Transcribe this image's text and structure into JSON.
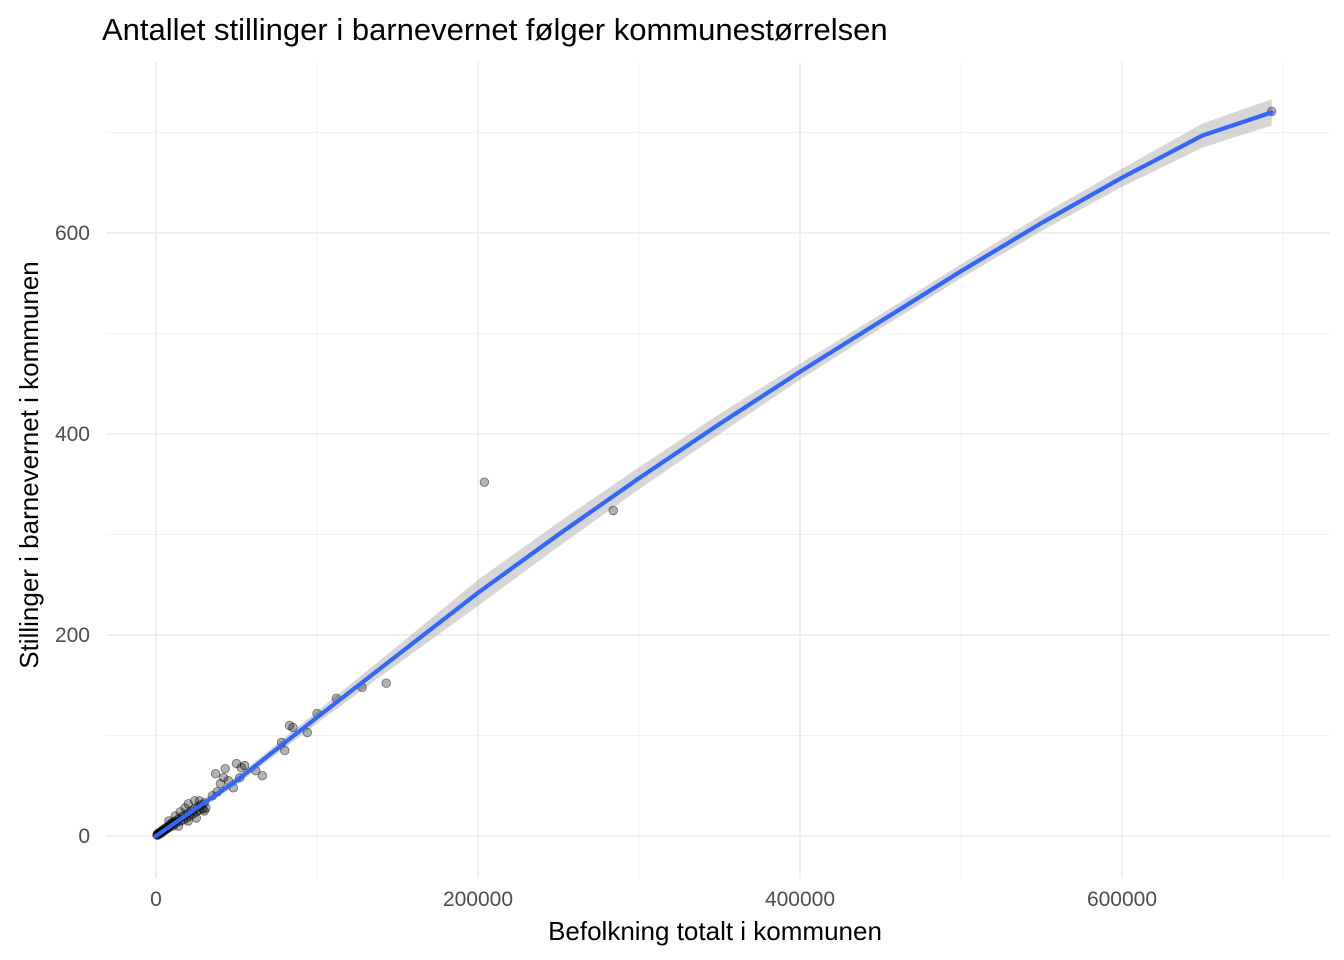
{
  "chart_data": {
    "type": "scatter",
    "title": "Antallet stillinger i barnevernet følger kommunestørrelsen",
    "xlabel": "Befolkning totalt i kommunen",
    "ylabel": "Stillinger i barnevernet i kommunen",
    "xlim": [
      -40000,
      720000
    ],
    "ylim": [
      -40,
      730
    ],
    "x_ticks": [
      0,
      200000,
      400000,
      600000
    ],
    "x_tick_labels": [
      "0",
      "200000",
      "400000",
      "600000"
    ],
    "y_ticks": [
      0,
      200,
      400,
      600
    ],
    "y_tick_labels": [
      "0",
      "200",
      "400",
      "600"
    ],
    "grid": true,
    "legend": "none",
    "point_color": "#000000",
    "point_opacity": 0.3,
    "line_color": "#3366ff",
    "ribbon_color": "#999999",
    "points": [
      [
        600,
        1
      ],
      [
        900,
        2
      ],
      [
        1200,
        1
      ],
      [
        1500,
        2
      ],
      [
        1800,
        3
      ],
      [
        2100,
        2
      ],
      [
        2400,
        3
      ],
      [
        2700,
        4
      ],
      [
        3000,
        3
      ],
      [
        3300,
        4
      ],
      [
        3600,
        5
      ],
      [
        4000,
        4
      ],
      [
        4400,
        6
      ],
      [
        4800,
        5
      ],
      [
        5200,
        7
      ],
      [
        5600,
        6
      ],
      [
        6000,
        8
      ],
      [
        6500,
        7
      ],
      [
        7000,
        9
      ],
      [
        7500,
        8
      ],
      [
        8000,
        10
      ],
      [
        8500,
        9
      ],
      [
        9000,
        12
      ],
      [
        9500,
        11
      ],
      [
        10000,
        13
      ],
      [
        10500,
        10
      ],
      [
        11000,
        14
      ],
      [
        11500,
        12
      ],
      [
        12000,
        15
      ],
      [
        13000,
        14
      ],
      [
        14000,
        17
      ],
      [
        15000,
        15
      ],
      [
        16000,
        19
      ],
      [
        17000,
        16
      ],
      [
        18000,
        21
      ],
      [
        19000,
        18
      ],
      [
        20000,
        23
      ],
      [
        21000,
        20
      ],
      [
        22000,
        25
      ],
      [
        23000,
        22
      ],
      [
        24000,
        27
      ],
      [
        25000,
        24
      ],
      [
        26000,
        29
      ],
      [
        27000,
        26
      ],
      [
        28000,
        31
      ],
      [
        29000,
        27
      ],
      [
        30000,
        33
      ],
      [
        31000,
        28
      ],
      [
        8000,
        15
      ],
      [
        12000,
        20
      ],
      [
        15000,
        24
      ],
      [
        18000,
        28
      ],
      [
        20000,
        32
      ],
      [
        24000,
        35
      ],
      [
        27000,
        35
      ],
      [
        14000,
        10
      ],
      [
        20000,
        15
      ],
      [
        30000,
        25
      ],
      [
        25000,
        18
      ],
      [
        35000,
        40
      ],
      [
        38000,
        44
      ],
      [
        40000,
        52
      ],
      [
        42000,
        58
      ],
      [
        37000,
        62
      ],
      [
        45000,
        55
      ],
      [
        48000,
        48
      ],
      [
        50000,
        72
      ],
      [
        53000,
        68
      ],
      [
        55000,
        70
      ],
      [
        62000,
        65
      ],
      [
        66000,
        60
      ],
      [
        43000,
        67
      ],
      [
        52000,
        58
      ],
      [
        80000,
        85
      ],
      [
        78000,
        93
      ],
      [
        83000,
        110
      ],
      [
        85000,
        108
      ],
      [
        94000,
        103
      ],
      [
        100000,
        122
      ],
      [
        112000,
        137
      ],
      [
        128000,
        148
      ],
      [
        143000,
        152
      ],
      [
        204000,
        352
      ],
      [
        284000,
        324
      ],
      [
        693000,
        721
      ]
    ],
    "smooth": {
      "x": [
        0,
        50000,
        100000,
        150000,
        200000,
        250000,
        300000,
        350000,
        400000,
        450000,
        500000,
        550000,
        600000,
        650000,
        693000
      ],
      "y": [
        0,
        55,
        118,
        180,
        242,
        300,
        356,
        410,
        462,
        512,
        562,
        610,
        655,
        697,
        720
      ],
      "lower": [
        -3,
        51,
        112,
        171,
        229,
        288,
        345,
        400,
        454,
        505,
        555,
        602,
        646,
        685,
        707
      ],
      "upper": [
        3,
        59,
        124,
        189,
        255,
        312,
        367,
        420,
        470,
        519,
        569,
        618,
        664,
        709,
        733
      ]
    }
  }
}
